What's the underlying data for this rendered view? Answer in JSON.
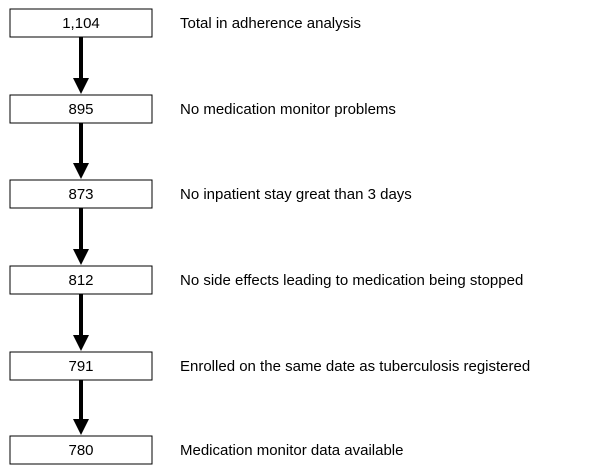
{
  "nodes": [
    {
      "count": "1,104",
      "label": "Total in adherence analysis"
    },
    {
      "count": "895",
      "label": "No medication monitor problems"
    },
    {
      "count": "873",
      "label": "No inpatient stay great than 3 days"
    },
    {
      "count": "812",
      "label": "No side effects leading to medication being stopped"
    },
    {
      "count": "791",
      "label": "Enrolled on the same date as tuberculosis registered"
    },
    {
      "count": "780",
      "label": "Medication monitor data available"
    }
  ]
}
